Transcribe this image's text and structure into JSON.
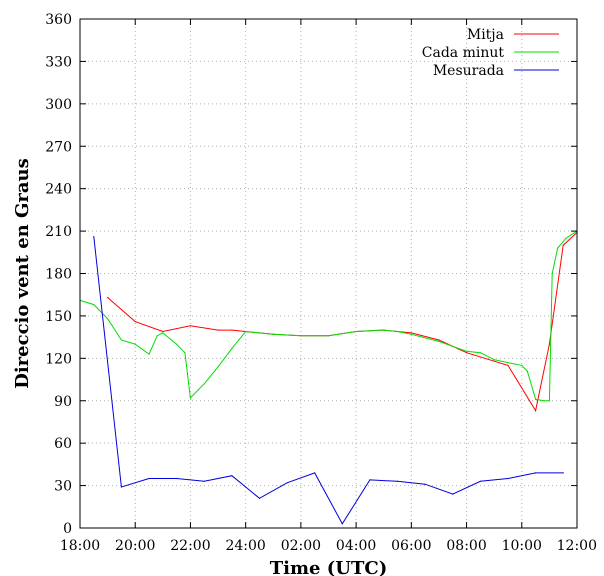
{
  "chart_data": {
    "type": "line",
    "xlabel": "Time (UTC)",
    "ylabel": "Direccio vent en Graus",
    "ylim": [
      0,
      360
    ],
    "yticks": [
      "0",
      "30",
      "60",
      "90",
      "120",
      "150",
      "180",
      "210",
      "240",
      "270",
      "300",
      "330",
      "360"
    ],
    "xlim": [
      0,
      18
    ],
    "xticks": [
      {
        "x": 0,
        "label": "18:00"
      },
      {
        "x": 2,
        "label": "20:00"
      },
      {
        "x": 4,
        "label": "22:00"
      },
      {
        "x": 6,
        "label": "24:00"
      },
      {
        "x": 8,
        "label": "02:00"
      },
      {
        "x": 10,
        "label": "04:00"
      },
      {
        "x": 12,
        "label": "06:00"
      },
      {
        "x": 14,
        "label": "08:00"
      },
      {
        "x": 16,
        "label": "10:00"
      },
      {
        "x": 18,
        "label": "12:00"
      }
    ],
    "grid": true,
    "legend_position": "top-right",
    "series": [
      {
        "name": "Mitja",
        "color": "#ff0000",
        "points": [
          [
            1.0,
            163
          ],
          [
            2.0,
            146
          ],
          [
            3.0,
            139
          ],
          [
            4.0,
            143
          ],
          [
            5.0,
            140
          ],
          [
            5.5,
            140
          ],
          [
            6.0,
            139
          ],
          [
            7.0,
            137
          ],
          [
            8.0,
            136
          ],
          [
            9.0,
            136
          ],
          [
            10.0,
            139
          ],
          [
            11.0,
            140
          ],
          [
            12.0,
            138
          ],
          [
            13.0,
            133
          ],
          [
            14.0,
            124
          ],
          [
            15.0,
            118
          ],
          [
            15.5,
            115
          ],
          [
            16.5,
            83
          ],
          [
            17.0,
            130
          ],
          [
            17.5,
            200
          ],
          [
            18.0,
            209
          ]
        ]
      },
      {
        "name": "Cada minut",
        "color": "#00dd00",
        "points": [
          [
            0.0,
            161
          ],
          [
            0.5,
            158
          ],
          [
            1.0,
            148
          ],
          [
            1.5,
            133
          ],
          [
            2.0,
            130
          ],
          [
            2.5,
            123
          ],
          [
            2.8,
            136
          ],
          [
            3.0,
            138
          ],
          [
            3.5,
            130
          ],
          [
            3.8,
            124
          ],
          [
            4.0,
            92
          ],
          [
            4.5,
            102
          ],
          [
            5.0,
            114
          ],
          [
            5.5,
            127
          ],
          [
            6.0,
            139
          ],
          [
            6.5,
            138
          ],
          [
            7.0,
            137
          ],
          [
            8.0,
            136
          ],
          [
            9.0,
            136
          ],
          [
            10.0,
            139
          ],
          [
            11.0,
            140
          ],
          [
            11.5,
            139
          ],
          [
            12.0,
            137
          ],
          [
            13.0,
            132
          ],
          [
            14.0,
            125
          ],
          [
            14.5,
            124
          ],
          [
            15.0,
            119
          ],
          [
            15.5,
            117
          ],
          [
            16.0,
            115
          ],
          [
            16.2,
            111
          ],
          [
            16.5,
            91
          ],
          [
            16.8,
            90
          ],
          [
            17.0,
            90
          ],
          [
            17.1,
            180
          ],
          [
            17.3,
            198
          ],
          [
            17.6,
            205
          ],
          [
            18.0,
            210
          ]
        ]
      },
      {
        "name": "Mesurada",
        "color": "#0000dd",
        "points": [
          [
            0.5,
            206
          ],
          [
            1.5,
            29
          ],
          [
            2.5,
            35
          ],
          [
            3.5,
            35
          ],
          [
            4.5,
            33
          ],
          [
            5.5,
            37
          ],
          [
            6.5,
            21
          ],
          [
            7.5,
            32
          ],
          [
            8.5,
            39
          ],
          [
            9.5,
            3
          ],
          [
            10.5,
            34
          ],
          [
            11.5,
            33
          ],
          [
            12.5,
            31
          ],
          [
            13.5,
            24
          ],
          [
            14.5,
            33
          ],
          [
            15.5,
            35
          ],
          [
            16.5,
            39
          ],
          [
            17.5,
            39
          ]
        ]
      }
    ]
  }
}
